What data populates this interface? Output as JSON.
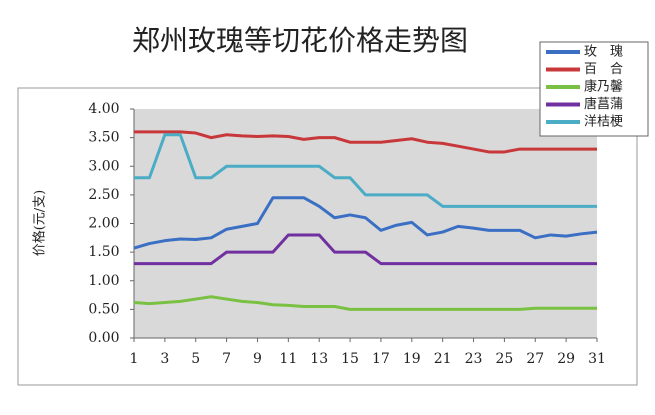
{
  "chart_data": {
    "type": "line",
    "title": "郑州玫瑰等切花价格走势图",
    "y_label": "价格(元/支)",
    "x": [
      1,
      2,
      3,
      4,
      5,
      6,
      7,
      8,
      9,
      10,
      11,
      12,
      13,
      14,
      15,
      16,
      17,
      18,
      19,
      20,
      21,
      22,
      23,
      24,
      25,
      26,
      27,
      28,
      29,
      30,
      31
    ],
    "xlim": [
      1,
      31
    ],
    "xticks": [
      1,
      3,
      5,
      7,
      9,
      11,
      13,
      15,
      17,
      19,
      21,
      23,
      25,
      27,
      29,
      31
    ],
    "ylim": [
      0,
      4
    ],
    "yticks": [
      {
        "value": 0,
        "label": "0.00"
      },
      {
        "value": 0.5,
        "label": "0.50"
      },
      {
        "value": 1,
        "label": "1.00"
      },
      {
        "value": 1.5,
        "label": "1.50"
      },
      {
        "value": 2,
        "label": "2.00"
      },
      {
        "value": 2.5,
        "label": "2.50"
      },
      {
        "value": 3,
        "label": "3.00"
      },
      {
        "value": 3.5,
        "label": "3.50"
      },
      {
        "value": 4,
        "label": "4.00"
      }
    ],
    "grid": false,
    "legend": "top-right",
    "series": [
      {
        "name": "玫　瑰",
        "color": "#3a6fc4",
        "values": [
          1.57,
          1.65,
          1.7,
          1.73,
          1.72,
          1.75,
          1.9,
          1.95,
          2.0,
          2.45,
          2.45,
          2.45,
          2.3,
          2.1,
          2.15,
          2.1,
          1.88,
          1.97,
          2.02,
          1.8,
          1.85,
          1.95,
          1.92,
          1.88,
          1.88,
          1.88,
          1.75,
          1.8,
          1.78,
          1.82,
          1.85
        ]
      },
      {
        "name": "百　合",
        "color": "#c8383a",
        "values": [
          3.6,
          3.6,
          3.6,
          3.6,
          3.58,
          3.5,
          3.55,
          3.53,
          3.52,
          3.53,
          3.52,
          3.47,
          3.5,
          3.5,
          3.42,
          3.42,
          3.42,
          3.45,
          3.48,
          3.42,
          3.4,
          3.35,
          3.3,
          3.25,
          3.25,
          3.3,
          3.3,
          3.3,
          3.3,
          3.3,
          3.3
        ]
      },
      {
        "name": "康乃馨",
        "color": "#7ac143",
        "values": [
          0.62,
          0.6,
          0.62,
          0.64,
          0.68,
          0.72,
          0.68,
          0.64,
          0.62,
          0.58,
          0.57,
          0.55,
          0.55,
          0.55,
          0.5,
          0.5,
          0.5,
          0.5,
          0.5,
          0.5,
          0.5,
          0.5,
          0.5,
          0.5,
          0.5,
          0.5,
          0.52,
          0.52,
          0.52,
          0.52,
          0.52
        ]
      },
      {
        "name": "唐菖蒲",
        "color": "#7030a0",
        "values": [
          1.3,
          1.3,
          1.3,
          1.3,
          1.3,
          1.3,
          1.5,
          1.5,
          1.5,
          1.5,
          1.8,
          1.8,
          1.8,
          1.5,
          1.5,
          1.5,
          1.3,
          1.3,
          1.3,
          1.3,
          1.3,
          1.3,
          1.3,
          1.3,
          1.3,
          1.3,
          1.3,
          1.3,
          1.3,
          1.3,
          1.3
        ]
      },
      {
        "name": "洋桔梗",
        "color": "#4bacc6",
        "values": [
          2.8,
          2.8,
          3.55,
          3.55,
          2.8,
          2.8,
          3.0,
          3.0,
          3.0,
          3.0,
          3.0,
          3.0,
          3.0,
          2.8,
          2.8,
          2.5,
          2.5,
          2.5,
          2.5,
          2.5,
          2.3,
          2.3,
          2.3,
          2.3,
          2.3,
          2.3,
          2.3,
          2.3,
          2.3,
          2.3,
          2.3
        ]
      }
    ]
  }
}
